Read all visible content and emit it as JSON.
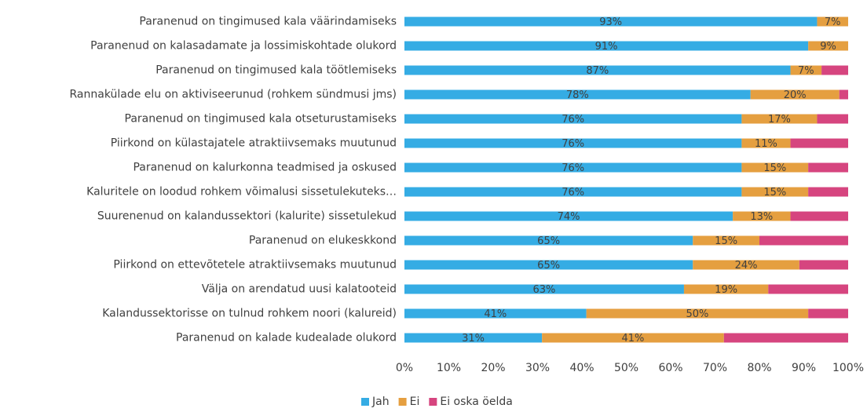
{
  "chart_data": {
    "type": "stacked_barh",
    "categories": [
      "Paranenud on tingimused kala väärindamiseks",
      "Paranenud on kalasadamate ja lossimiskohtade olukord",
      "Paranenud on tingimused kala töötlemiseks",
      "Rannakülade elu on aktiviseerunud (rohkem sündmusi jms)",
      "Paranenud on tingimused kala otseturustamiseks",
      "Piirkond on külastajatele atraktiivsemaks muutunud",
      "Paranenud on kalurkonna teadmised ja oskused",
      "Kaluritele on loodud rohkem võimalusi sissetulekuteks…",
      "Suurenenud on kalandussektori (kalurite) sissetulekud",
      "Paranenud on elukeskkond",
      "Piirkond on ettevõtetele atraktiivsemaks muutunud",
      "Välja on arendatud uusi kalatooteid",
      "Kalandussektorisse on tulnud rohkem noori (kalureid)",
      "Paranenud on kalade kudealade olukord"
    ],
    "series": [
      {
        "name": "Jah",
        "color": "#35ace4",
        "values": [
          93,
          91,
          87,
          78,
          76,
          76,
          76,
          76,
          74,
          65,
          65,
          63,
          41,
          31
        ],
        "value_labels": [
          "93%",
          "91%",
          "87%",
          "78%",
          "76%",
          "76%",
          "76%",
          "76%",
          "74%",
          "65%",
          "65%",
          "63%",
          "41%",
          "31%"
        ]
      },
      {
        "name": "Ei",
        "color": "#e59f40",
        "values": [
          7,
          9,
          7,
          20,
          17,
          11,
          15,
          15,
          13,
          15,
          24,
          19,
          50,
          41
        ],
        "value_labels": [
          "7%",
          "9%",
          "7%",
          "20%",
          "17%",
          "11%",
          "15%",
          "15%",
          "13%",
          "15%",
          "24%",
          "19%",
          "50%",
          "41%"
        ]
      },
      {
        "name": "Ei oska öelda",
        "color": "#d6457f",
        "values": [
          0,
          0,
          6,
          2,
          7,
          13,
          9,
          9,
          13,
          20,
          11,
          18,
          9,
          28
        ]
      }
    ],
    "xlim": [
      0,
      100
    ],
    "xticks": [
      {
        "value": 0,
        "label": "0%"
      },
      {
        "value": 10,
        "label": "10%"
      },
      {
        "value": 20,
        "label": "20%"
      },
      {
        "value": 30,
        "label": "30%"
      },
      {
        "value": 40,
        "label": "40%"
      },
      {
        "value": 50,
        "label": "50%"
      },
      {
        "value": 60,
        "label": "60%"
      },
      {
        "value": 70,
        "label": "70%"
      },
      {
        "value": 80,
        "label": "80%"
      },
      {
        "value": 90,
        "label": "90%"
      },
      {
        "value": 100,
        "label": "100%"
      }
    ],
    "grid": false,
    "legend": "bottom"
  }
}
